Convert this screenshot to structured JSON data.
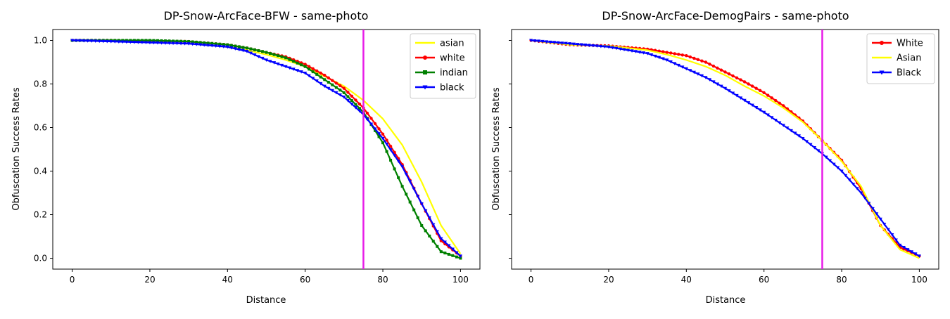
{
  "chart_data": [
    {
      "type": "line",
      "title": "DP-Snow-ArcFace-BFW - same-photo",
      "xlabel": "Distance",
      "ylabel": "Obfuscation Success Rates",
      "xlim": [
        -5,
        105
      ],
      "ylim": [
        -0.05,
        1.05
      ],
      "xticks": [
        0,
        20,
        40,
        60,
        80,
        100
      ],
      "yticks": [
        0.0,
        0.2,
        0.4,
        0.6,
        0.8,
        1.0
      ],
      "ytick_labels_shown": true,
      "vline": {
        "x": 75,
        "color": "#e81ce8"
      },
      "legend_position": "upper right",
      "series": [
        {
          "name": "asian",
          "color": "#ffff00",
          "marker": "none",
          "x": [
            0,
            10,
            20,
            30,
            40,
            45,
            50,
            55,
            60,
            65,
            70,
            75,
            80,
            85,
            90,
            95,
            100
          ],
          "values": [
            1.0,
            0.997,
            0.993,
            0.987,
            0.97,
            0.955,
            0.935,
            0.91,
            0.88,
            0.835,
            0.79,
            0.725,
            0.64,
            0.52,
            0.35,
            0.15,
            0.02
          ]
        },
        {
          "name": "white",
          "color": "#ff0000",
          "marker": "circle",
          "x": [
            0,
            10,
            20,
            30,
            40,
            45,
            50,
            55,
            60,
            65,
            70,
            75,
            80,
            85,
            90,
            95,
            100
          ],
          "values": [
            1.0,
            1.0,
            0.998,
            0.995,
            0.98,
            0.965,
            0.945,
            0.925,
            0.89,
            0.84,
            0.78,
            0.69,
            0.57,
            0.43,
            0.25,
            0.08,
            0.01
          ]
        },
        {
          "name": "indian",
          "color": "#008000",
          "marker": "square",
          "x": [
            0,
            10,
            20,
            30,
            40,
            45,
            50,
            55,
            60,
            65,
            70,
            75,
            80,
            85,
            90,
            95,
            100
          ],
          "values": [
            1.0,
            1.0,
            1.0,
            0.995,
            0.98,
            0.965,
            0.945,
            0.92,
            0.88,
            0.82,
            0.76,
            0.67,
            0.53,
            0.33,
            0.15,
            0.03,
            0.0
          ]
        },
        {
          "name": "black",
          "color": "#0000ff",
          "marker": "triangle-down",
          "x": [
            0,
            10,
            20,
            30,
            40,
            45,
            50,
            55,
            60,
            65,
            70,
            75,
            80,
            85,
            90,
            95,
            100
          ],
          "values": [
            1.0,
            0.995,
            0.99,
            0.985,
            0.97,
            0.95,
            0.91,
            0.88,
            0.85,
            0.79,
            0.74,
            0.66,
            0.55,
            0.42,
            0.25,
            0.09,
            0.01
          ]
        }
      ]
    },
    {
      "type": "line",
      "title": "DP-Snow-ArcFace-DemogPairs - same-photo",
      "xlabel": "Distance",
      "ylabel": "Obfuscation Success Rates",
      "xlim": [
        -5,
        105
      ],
      "ylim": [
        -0.05,
        1.05
      ],
      "xticks": [
        0,
        20,
        40,
        60,
        80,
        100
      ],
      "yticks": [
        0.0,
        0.2,
        0.4,
        0.6,
        0.8,
        1.0
      ],
      "ytick_labels_shown": false,
      "vline": {
        "x": 75,
        "color": "#e81ce8"
      },
      "legend_position": "upper right",
      "series": [
        {
          "name": "White",
          "color": "#ff0000",
          "marker": "circle",
          "x": [
            0,
            10,
            20,
            30,
            35,
            40,
            45,
            50,
            55,
            60,
            65,
            70,
            75,
            80,
            85,
            90,
            95,
            100
          ],
          "values": [
            1.0,
            0.98,
            0.975,
            0.96,
            0.945,
            0.93,
            0.9,
            0.855,
            0.81,
            0.76,
            0.7,
            0.63,
            0.54,
            0.45,
            0.32,
            0.15,
            0.05,
            0.01
          ]
        },
        {
          "name": "Asian",
          "color": "#ffff00",
          "marker": "none",
          "x": [
            0,
            10,
            20,
            30,
            35,
            40,
            45,
            50,
            55,
            60,
            65,
            70,
            75,
            80,
            85,
            90,
            95,
            100
          ],
          "values": [
            1.0,
            0.98,
            0.975,
            0.955,
            0.935,
            0.91,
            0.88,
            0.84,
            0.79,
            0.745,
            0.69,
            0.625,
            0.54,
            0.445,
            0.33,
            0.15,
            0.04,
            0.0
          ]
        },
        {
          "name": "Black",
          "color": "#0000ff",
          "marker": "triangle-down",
          "x": [
            0,
            10,
            20,
            30,
            35,
            40,
            45,
            50,
            55,
            60,
            65,
            70,
            75,
            80,
            85,
            90,
            95,
            100
          ],
          "values": [
            1.0,
            0.985,
            0.97,
            0.94,
            0.91,
            0.87,
            0.83,
            0.78,
            0.725,
            0.67,
            0.61,
            0.55,
            0.48,
            0.4,
            0.3,
            0.18,
            0.06,
            0.01
          ]
        }
      ]
    }
  ]
}
